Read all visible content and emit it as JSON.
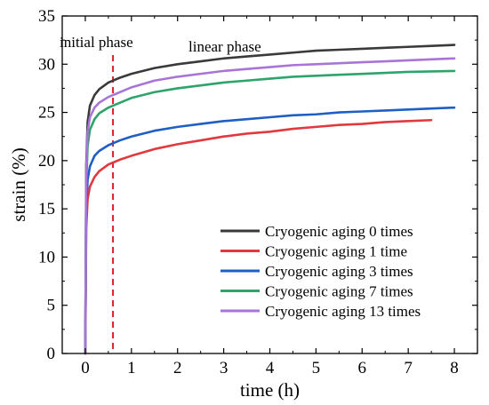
{
  "chart_data": {
    "type": "line",
    "xlabel": "time (h)",
    "ylabel": "strain (%)",
    "xlim": [
      -0.5,
      8.5
    ],
    "ylim": [
      0,
      35
    ],
    "xticks": [
      "0",
      "1",
      "2",
      "3",
      "4",
      "5",
      "6",
      "7",
      "8"
    ],
    "yticks": [
      "0",
      "5",
      "10",
      "15",
      "20",
      "25",
      "30",
      "35"
    ],
    "grid": false,
    "legend_position": "bottom-right",
    "annotations": [
      {
        "text": "initial phase"
      },
      {
        "text": "linear phase"
      }
    ],
    "reference_line": {
      "type": "vertical",
      "x": 0.6,
      "color": "#e02020",
      "style": "dashed"
    },
    "x": [
      0,
      0.02,
      0.05,
      0.1,
      0.2,
      0.3,
      0.5,
      0.75,
      1,
      1.5,
      2,
      2.5,
      3,
      3.5,
      4,
      4.5,
      5,
      5.5,
      6,
      6.5,
      7,
      7.5,
      8
    ],
    "series": [
      {
        "name": "Cryogenic aging 0 times",
        "color": "#3a3a3a",
        "values": [
          0,
          19.5,
          24.0,
          25.7,
          26.8,
          27.4,
          28.1,
          28.6,
          29.0,
          29.6,
          30.0,
          30.3,
          30.6,
          30.8,
          31.0,
          31.2,
          31.4,
          31.5,
          31.6,
          31.7,
          31.8,
          31.9,
          32.0
        ]
      },
      {
        "name": "Cryogenic aging 1 time",
        "color": "#e0393e",
        "values": [
          0,
          13.0,
          16.0,
          17.3,
          18.3,
          18.9,
          19.6,
          20.1,
          20.5,
          21.2,
          21.7,
          22.1,
          22.5,
          22.8,
          23.0,
          23.3,
          23.5,
          23.7,
          23.8,
          24.0,
          24.1,
          24.2,
          null
        ]
      },
      {
        "name": "Cryogenic aging 3 times",
        "color": "#1f5fc4",
        "values": [
          0,
          15.0,
          18.0,
          19.4,
          20.5,
          21.0,
          21.6,
          22.1,
          22.5,
          23.1,
          23.5,
          23.8,
          24.1,
          24.3,
          24.5,
          24.7,
          24.8,
          25.0,
          25.1,
          25.2,
          25.3,
          25.4,
          25.5
        ]
      },
      {
        "name": "Cryogenic aging 7 times",
        "color": "#2ea36a",
        "values": [
          0,
          17.5,
          21.5,
          23.2,
          24.3,
          24.9,
          25.5,
          26.0,
          26.5,
          27.1,
          27.5,
          27.8,
          28.1,
          28.3,
          28.5,
          28.7,
          28.8,
          28.9,
          29.0,
          29.1,
          29.2,
          29.25,
          29.3
        ]
      },
      {
        "name": "Cryogenic aging 13 times",
        "color": "#a874d8",
        "values": [
          0,
          19.0,
          23.0,
          24.5,
          25.5,
          26.0,
          26.6,
          27.1,
          27.6,
          28.3,
          28.7,
          29.0,
          29.3,
          29.5,
          29.7,
          29.9,
          30.0,
          30.1,
          30.2,
          30.3,
          30.4,
          30.5,
          30.6
        ]
      }
    ]
  }
}
